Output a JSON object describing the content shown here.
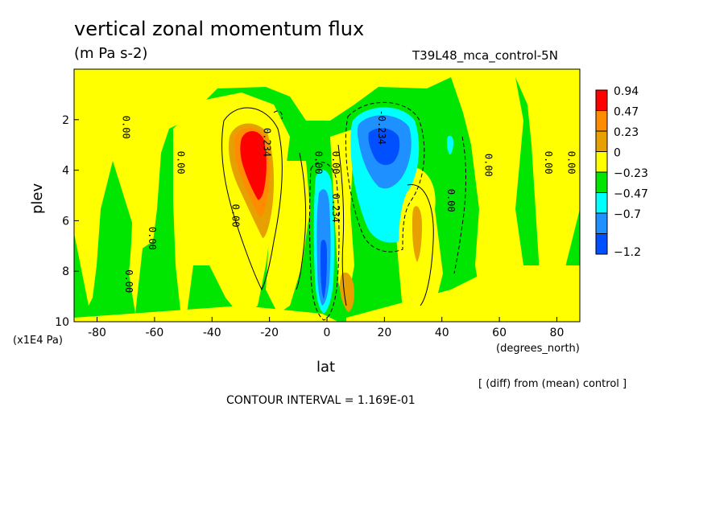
{
  "header": {
    "title": "vertical zonal momentum flux",
    "units": "(m Pa s-2)",
    "run_label": "T39L48_mca_control-5N"
  },
  "footer": {
    "contour_interval": "CONTOUR INTERVAL = 1.169E-01",
    "diff_note": "[ (diff) from (mean) control ]",
    "y_unit": "(x1E4 Pa)",
    "x_unit": "(degrees_north)"
  },
  "chart_data": {
    "type": "heatmap",
    "title": "vertical zonal momentum flux",
    "xlabel": "lat",
    "ylabel": "plev",
    "xlim": [
      -88,
      88
    ],
    "ylim": [
      10,
      0
    ],
    "x_ticks": [
      -80,
      -60,
      -40,
      -20,
      0,
      20,
      40,
      60,
      80
    ],
    "y_ticks": [
      2,
      4,
      6,
      8,
      10
    ],
    "legend": {
      "placement": "right",
      "levels": [
        "0.94",
        "0.47",
        "0.23",
        "0",
        "−0.23",
        "−0.47",
        "−0.7",
        "−1.2"
      ],
      "colors": [
        "#ff0000",
        "#ff8c00",
        "#e6a000",
        "#ffff00",
        "#00e600",
        "#00ffff",
        "#1e90ff",
        "#0050ff"
      ]
    },
    "contour_labels": [
      {
        "text": "0.00",
        "lat": -71,
        "plev": 2.3
      },
      {
        "text": "0.00",
        "lat": -70,
        "plev": 8.4
      },
      {
        "text": "0.00",
        "lat": -62,
        "plev": 6.7
      },
      {
        "text": "0.00",
        "lat": -52,
        "plev": 3.7
      },
      {
        "text": "0.00",
        "lat": -33,
        "plev": 5.8
      },
      {
        "text": "0.234",
        "lat": -22,
        "plev": 2.9
      },
      {
        "text": "0.00",
        "lat": -4,
        "plev": 3.7
      },
      {
        "text": "0.00",
        "lat": 2,
        "plev": 3.7
      },
      {
        "text": "0.234",
        "lat": 2,
        "plev": 5.5
      },
      {
        "text": "-0.234",
        "lat": 18,
        "plev": 2.3
      },
      {
        "text": "0.00",
        "lat": 42,
        "plev": 5.2
      },
      {
        "text": "0.00",
        "lat": 55,
        "plev": 3.8
      },
      {
        "text": "0.00",
        "lat": 76,
        "plev": 3.7
      },
      {
        "text": "0.00",
        "lat": 84,
        "plev": 3.7
      }
    ],
    "features": [
      {
        "sign": "positive",
        "max": "0.94",
        "lat": -25,
        "plev": 3.5
      },
      {
        "sign": "negative",
        "min": "-0.7",
        "lat": 20,
        "plev": 3
      },
      {
        "sign": "negative",
        "min": "-0.7",
        "lat": 0,
        "plev": 8
      },
      {
        "sign": "positive",
        "max": "0.23",
        "lat": 32,
        "plev": 6.5
      },
      {
        "sign": "positive",
        "max": "0.23",
        "lat": 8,
        "plev": 8.5
      }
    ]
  }
}
